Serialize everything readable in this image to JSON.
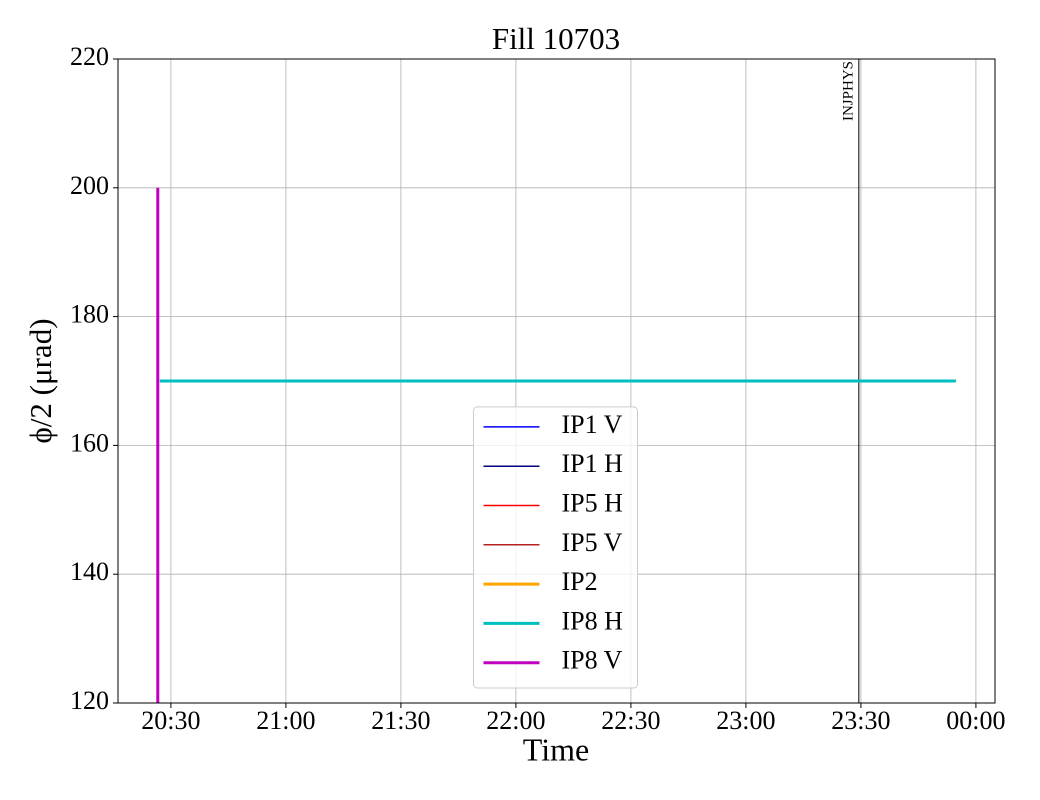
{
  "chart_data": {
    "type": "line",
    "title": "Fill 10703",
    "xlabel": "Time",
    "ylabel": "ϕ/2 (μrad)",
    "xlim": [
      20.27,
      24.083
    ],
    "ylim": [
      120,
      220
    ],
    "xticks": [
      {
        "value": 20.5,
        "label": "20:30"
      },
      {
        "value": 21.0,
        "label": "21:00"
      },
      {
        "value": 21.5,
        "label": "21:30"
      },
      {
        "value": 22.0,
        "label": "22:00"
      },
      {
        "value": 22.5,
        "label": "22:30"
      },
      {
        "value": 23.0,
        "label": "23:00"
      },
      {
        "value": 23.5,
        "label": "23:30"
      },
      {
        "value": 24.0,
        "label": "00:00"
      }
    ],
    "yticks": [
      120,
      140,
      160,
      180,
      200,
      220
    ],
    "grid": true,
    "legend": "lower center",
    "series": [
      {
        "name": "IP1 V",
        "color": "#0000ff",
        "linewidth": 1.5,
        "x": [],
        "values": []
      },
      {
        "name": "IP1 H",
        "color": "#000080",
        "linewidth": 1.5,
        "x": [],
        "values": []
      },
      {
        "name": "IP5 H",
        "color": "#ff0000",
        "linewidth": 1.5,
        "x": [],
        "values": []
      },
      {
        "name": "IP5 V",
        "color": "#b22222",
        "linewidth": 1.5,
        "x": [],
        "values": []
      },
      {
        "name": "IP2",
        "color": "#ffa500",
        "linewidth": 3,
        "x": [],
        "values": []
      },
      {
        "name": "IP8 H",
        "color": "#00bfbf",
        "linewidth": 3,
        "x": [
          20.452,
          23.913
        ],
        "values": [
          170,
          170
        ]
      },
      {
        "name": "IP8 V",
        "color": "#bf00bf",
        "linewidth": 3,
        "x": [
          20.443,
          20.443
        ],
        "values": [
          200,
          120
        ]
      }
    ],
    "annotations": [
      {
        "x": 23.491,
        "label": "INJPHYS"
      }
    ]
  }
}
